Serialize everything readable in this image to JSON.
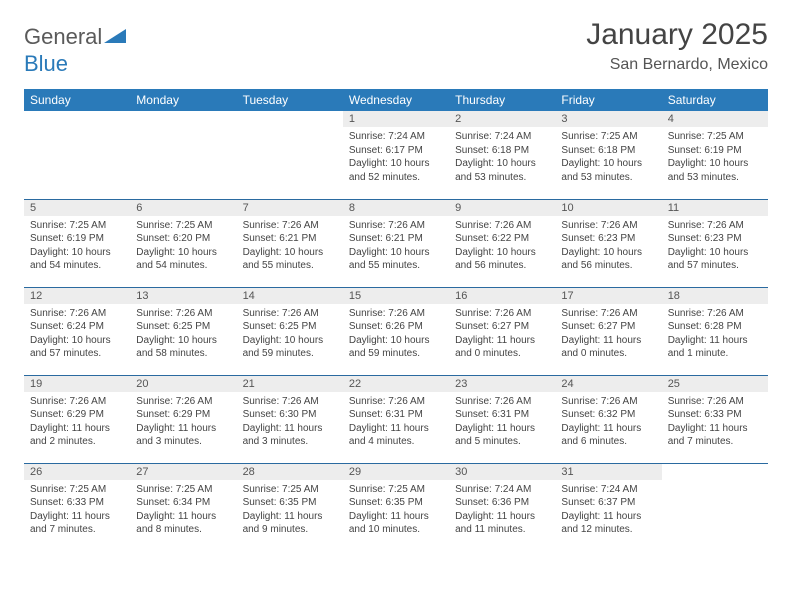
{
  "logo": {
    "text_general": "General",
    "text_blue": "Blue"
  },
  "title": "January 2025",
  "location": "San Bernardo, Mexico",
  "colors": {
    "header_bg": "#2a7ab9",
    "header_fg": "#ffffff",
    "daynum_bg": "#ededed",
    "row_border": "#2a6aa0",
    "text": "#444444"
  },
  "weekdays": [
    "Sunday",
    "Monday",
    "Tuesday",
    "Wednesday",
    "Thursday",
    "Friday",
    "Saturday"
  ],
  "weeks": [
    [
      {
        "n": "",
        "sr": "",
        "ss": "",
        "dl": ""
      },
      {
        "n": "",
        "sr": "",
        "ss": "",
        "dl": ""
      },
      {
        "n": "",
        "sr": "",
        "ss": "",
        "dl": ""
      },
      {
        "n": "1",
        "sr": "Sunrise: 7:24 AM",
        "ss": "Sunset: 6:17 PM",
        "dl": "Daylight: 10 hours and 52 minutes."
      },
      {
        "n": "2",
        "sr": "Sunrise: 7:24 AM",
        "ss": "Sunset: 6:18 PM",
        "dl": "Daylight: 10 hours and 53 minutes."
      },
      {
        "n": "3",
        "sr": "Sunrise: 7:25 AM",
        "ss": "Sunset: 6:18 PM",
        "dl": "Daylight: 10 hours and 53 minutes."
      },
      {
        "n": "4",
        "sr": "Sunrise: 7:25 AM",
        "ss": "Sunset: 6:19 PM",
        "dl": "Daylight: 10 hours and 53 minutes."
      }
    ],
    [
      {
        "n": "5",
        "sr": "Sunrise: 7:25 AM",
        "ss": "Sunset: 6:19 PM",
        "dl": "Daylight: 10 hours and 54 minutes."
      },
      {
        "n": "6",
        "sr": "Sunrise: 7:25 AM",
        "ss": "Sunset: 6:20 PM",
        "dl": "Daylight: 10 hours and 54 minutes."
      },
      {
        "n": "7",
        "sr": "Sunrise: 7:26 AM",
        "ss": "Sunset: 6:21 PM",
        "dl": "Daylight: 10 hours and 55 minutes."
      },
      {
        "n": "8",
        "sr": "Sunrise: 7:26 AM",
        "ss": "Sunset: 6:21 PM",
        "dl": "Daylight: 10 hours and 55 minutes."
      },
      {
        "n": "9",
        "sr": "Sunrise: 7:26 AM",
        "ss": "Sunset: 6:22 PM",
        "dl": "Daylight: 10 hours and 56 minutes."
      },
      {
        "n": "10",
        "sr": "Sunrise: 7:26 AM",
        "ss": "Sunset: 6:23 PM",
        "dl": "Daylight: 10 hours and 56 minutes."
      },
      {
        "n": "11",
        "sr": "Sunrise: 7:26 AM",
        "ss": "Sunset: 6:23 PM",
        "dl": "Daylight: 10 hours and 57 minutes."
      }
    ],
    [
      {
        "n": "12",
        "sr": "Sunrise: 7:26 AM",
        "ss": "Sunset: 6:24 PM",
        "dl": "Daylight: 10 hours and 57 minutes."
      },
      {
        "n": "13",
        "sr": "Sunrise: 7:26 AM",
        "ss": "Sunset: 6:25 PM",
        "dl": "Daylight: 10 hours and 58 minutes."
      },
      {
        "n": "14",
        "sr": "Sunrise: 7:26 AM",
        "ss": "Sunset: 6:25 PM",
        "dl": "Daylight: 10 hours and 59 minutes."
      },
      {
        "n": "15",
        "sr": "Sunrise: 7:26 AM",
        "ss": "Sunset: 6:26 PM",
        "dl": "Daylight: 10 hours and 59 minutes."
      },
      {
        "n": "16",
        "sr": "Sunrise: 7:26 AM",
        "ss": "Sunset: 6:27 PM",
        "dl": "Daylight: 11 hours and 0 minutes."
      },
      {
        "n": "17",
        "sr": "Sunrise: 7:26 AM",
        "ss": "Sunset: 6:27 PM",
        "dl": "Daylight: 11 hours and 0 minutes."
      },
      {
        "n": "18",
        "sr": "Sunrise: 7:26 AM",
        "ss": "Sunset: 6:28 PM",
        "dl": "Daylight: 11 hours and 1 minute."
      }
    ],
    [
      {
        "n": "19",
        "sr": "Sunrise: 7:26 AM",
        "ss": "Sunset: 6:29 PM",
        "dl": "Daylight: 11 hours and 2 minutes."
      },
      {
        "n": "20",
        "sr": "Sunrise: 7:26 AM",
        "ss": "Sunset: 6:29 PM",
        "dl": "Daylight: 11 hours and 3 minutes."
      },
      {
        "n": "21",
        "sr": "Sunrise: 7:26 AM",
        "ss": "Sunset: 6:30 PM",
        "dl": "Daylight: 11 hours and 3 minutes."
      },
      {
        "n": "22",
        "sr": "Sunrise: 7:26 AM",
        "ss": "Sunset: 6:31 PM",
        "dl": "Daylight: 11 hours and 4 minutes."
      },
      {
        "n": "23",
        "sr": "Sunrise: 7:26 AM",
        "ss": "Sunset: 6:31 PM",
        "dl": "Daylight: 11 hours and 5 minutes."
      },
      {
        "n": "24",
        "sr": "Sunrise: 7:26 AM",
        "ss": "Sunset: 6:32 PM",
        "dl": "Daylight: 11 hours and 6 minutes."
      },
      {
        "n": "25",
        "sr": "Sunrise: 7:26 AM",
        "ss": "Sunset: 6:33 PM",
        "dl": "Daylight: 11 hours and 7 minutes."
      }
    ],
    [
      {
        "n": "26",
        "sr": "Sunrise: 7:25 AM",
        "ss": "Sunset: 6:33 PM",
        "dl": "Daylight: 11 hours and 7 minutes."
      },
      {
        "n": "27",
        "sr": "Sunrise: 7:25 AM",
        "ss": "Sunset: 6:34 PM",
        "dl": "Daylight: 11 hours and 8 minutes."
      },
      {
        "n": "28",
        "sr": "Sunrise: 7:25 AM",
        "ss": "Sunset: 6:35 PM",
        "dl": "Daylight: 11 hours and 9 minutes."
      },
      {
        "n": "29",
        "sr": "Sunrise: 7:25 AM",
        "ss": "Sunset: 6:35 PM",
        "dl": "Daylight: 11 hours and 10 minutes."
      },
      {
        "n": "30",
        "sr": "Sunrise: 7:24 AM",
        "ss": "Sunset: 6:36 PM",
        "dl": "Daylight: 11 hours and 11 minutes."
      },
      {
        "n": "31",
        "sr": "Sunrise: 7:24 AM",
        "ss": "Sunset: 6:37 PM",
        "dl": "Daylight: 11 hours and 12 minutes."
      },
      {
        "n": "",
        "sr": "",
        "ss": "",
        "dl": ""
      }
    ]
  ]
}
